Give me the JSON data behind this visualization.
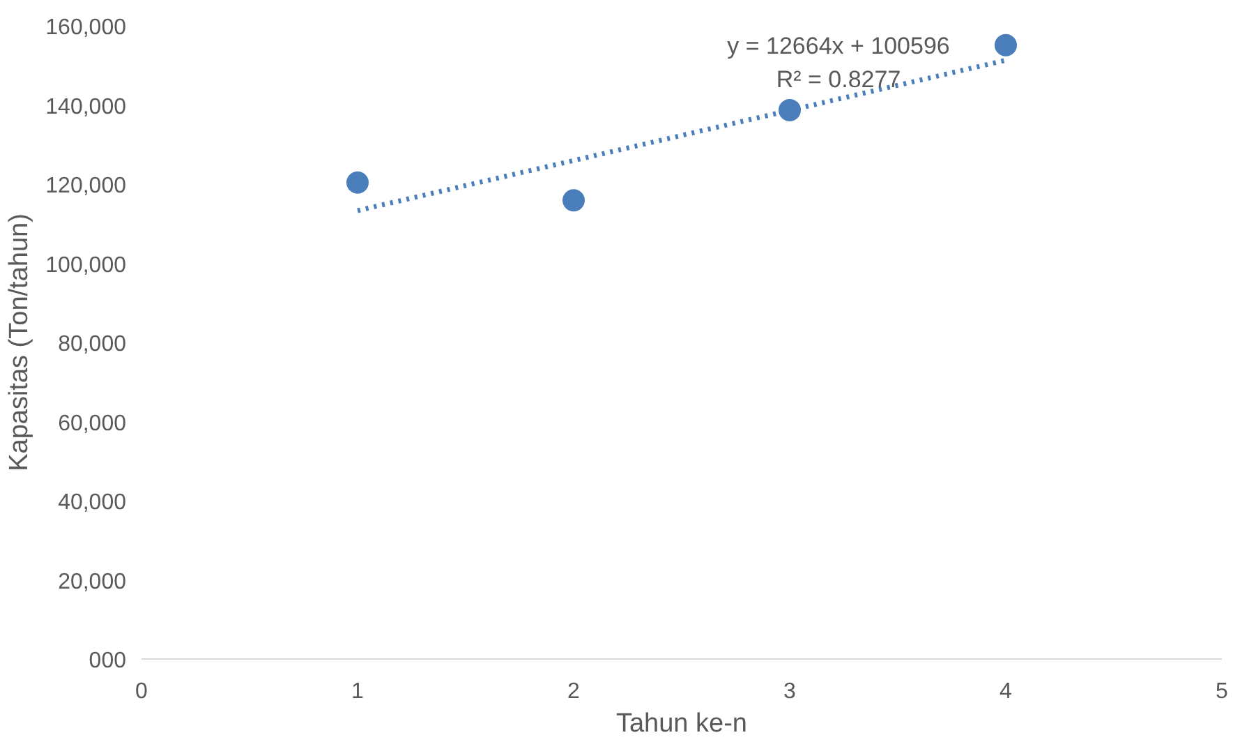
{
  "chart_data": {
    "type": "scatter",
    "xlabel": "Tahun ke-n",
    "ylabel": "Kapasitas (Ton/tahun)",
    "x": [
      1,
      2,
      3,
      4
    ],
    "series": [
      {
        "type": "scatter",
        "color": "#4a7ebb",
        "values": [
          120400,
          115900,
          138700,
          155100
        ],
        "marker": "circle"
      },
      {
        "type": "line",
        "color": "#4a7ebb",
        "x": [
          1,
          4
        ],
        "values": [
          113300,
          151300
        ],
        "line_style": "dotted",
        "marker": "none"
      }
    ],
    "annotations": [
      "y = 12664x + 100596",
      "R² = 0.8277"
    ],
    "xlim": [
      0,
      5
    ],
    "xticks": [
      0,
      1,
      2,
      3,
      4,
      5
    ],
    "ylim": [
      0,
      160000
    ],
    "yticks": [
      {
        "value": 0,
        "label": "000"
      },
      {
        "value": 20000,
        "label": "20,000"
      },
      {
        "value": 40000,
        "label": "40,000"
      },
      {
        "value": 60000,
        "label": "60,000"
      },
      {
        "value": 80000,
        "label": "80,000"
      },
      {
        "value": 100000,
        "label": "100,000"
      },
      {
        "value": 120000,
        "label": "120,000"
      },
      {
        "value": 140000,
        "label": "140,000"
      },
      {
        "value": 160000,
        "label": "160,000"
      }
    ],
    "grid": false
  }
}
